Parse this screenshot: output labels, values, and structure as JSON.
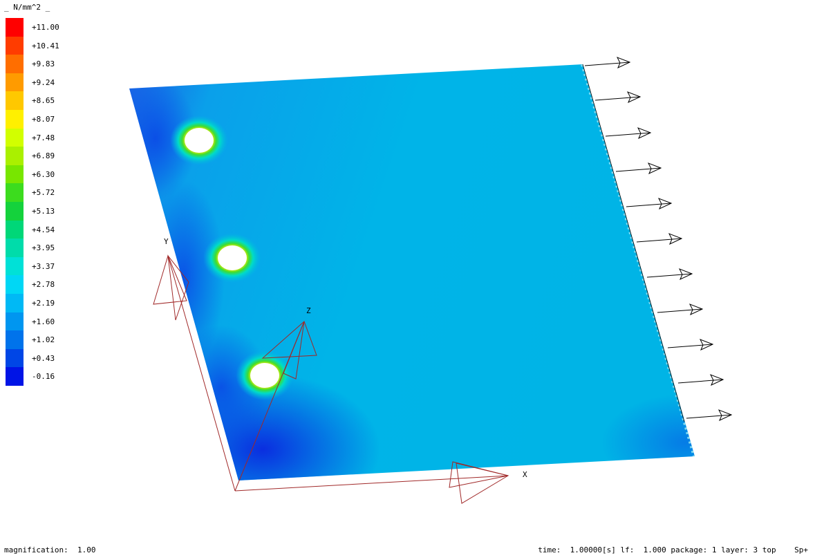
{
  "legend": {
    "title": "_ N/mm^2 _",
    "items": [
      {
        "label": "+11.00",
        "color": "#ff0000"
      },
      {
        "label": "+10.41",
        "color": "#ff3c00"
      },
      {
        "label": "+9.83",
        "color": "#ff6e00"
      },
      {
        "label": "+9.24",
        "color": "#ff9b00"
      },
      {
        "label": "+8.65",
        "color": "#ffc800"
      },
      {
        "label": "+8.07",
        "color": "#fff000"
      },
      {
        "label": "+7.48",
        "color": "#d2ff00"
      },
      {
        "label": "+6.89",
        "color": "#aaf000"
      },
      {
        "label": "+6.30",
        "color": "#78e600"
      },
      {
        "label": "+5.72",
        "color": "#3cdc1e"
      },
      {
        "label": "+5.13",
        "color": "#14d23c"
      },
      {
        "label": "+4.54",
        "color": "#00d778"
      },
      {
        "label": "+3.95",
        "color": "#00dcaa"
      },
      {
        "label": "+3.37",
        "color": "#00e1d7"
      },
      {
        "label": "+2.78",
        "color": "#00d7f5"
      },
      {
        "label": "+2.19",
        "color": "#00b9f5"
      },
      {
        "label": "+1.60",
        "color": "#0096f0"
      },
      {
        "label": "+1.02",
        "color": "#0073eb"
      },
      {
        "label": "+0.43",
        "color": "#0046e6"
      },
      {
        "label": "-0.16",
        "color": "#0014e6"
      }
    ]
  },
  "axes": {
    "x": "X",
    "y": "Y",
    "z": "Z"
  },
  "status": {
    "left": "magnification:  1.00",
    "right": "time:  1.00000[s] lf:  1.000 package: 1 layer: 3 top    Sp+"
  },
  "colors": {
    "plate_base": "#00b4e6",
    "plate_low": "#0a3ce6",
    "axis_triad": "#a02828",
    "force_arrow": "#000000"
  }
}
